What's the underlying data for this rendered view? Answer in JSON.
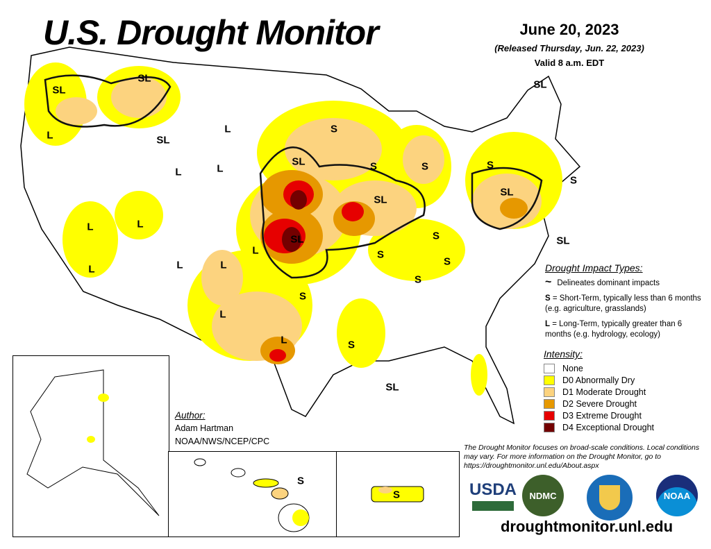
{
  "header": {
    "title": "U.S. Drought Monitor",
    "date": "June 20, 2023",
    "released": "(Released Thursday, Jun. 22, 2023)",
    "valid": "Valid 8 a.m. EDT"
  },
  "map": {
    "labels": [
      "SL",
      "SL",
      "L",
      "SL",
      "L",
      "L",
      "L",
      "S",
      "SL",
      "S",
      "S",
      "SL",
      "L",
      "L",
      "L",
      "SL",
      "L",
      "S",
      "S",
      "S",
      "S",
      "L",
      "L",
      "L",
      "L",
      "S",
      "S",
      "SL",
      "SL",
      "S",
      "SL",
      "S",
      "SL",
      "S",
      "S"
    ]
  },
  "impact": {
    "title": "Drought Impact Types:",
    "delineates": "Delineates dominant impacts",
    "s_key": "S",
    "s_text": " = Short-Term, typically less than 6 months (e.g. agriculture, grasslands)",
    "l_key": "L",
    "l_text": " = Long-Term, typically greater than 6 months (e.g. hydrology, ecology)"
  },
  "intensity": {
    "title": "Intensity:",
    "levels": [
      {
        "label": "None",
        "color": "#ffffff"
      },
      {
        "label": "D0 Abnormally Dry",
        "color": "#ffff00"
      },
      {
        "label": "D1 Moderate Drought",
        "color": "#fcd37f"
      },
      {
        "label": "D2 Severe Drought",
        "color": "#e69800"
      },
      {
        "label": "D3 Extreme Drought",
        "color": "#e60000"
      },
      {
        "label": "D4 Exceptional Drought",
        "color": "#730000"
      }
    ]
  },
  "author": {
    "title": "Author:",
    "name": "Adam Hartman",
    "org": "NOAA/NWS/NCEP/CPC"
  },
  "note": "The Drought Monitor focuses on broad-scale conditions. Local conditions may vary. For more information on the Drought Monitor, go to https://droughtmonitor.unl.edu/About.aspx",
  "logos": [
    "USDA",
    "NDMC",
    "NOAA"
  ],
  "url": "droughtmonitor.unl.edu"
}
